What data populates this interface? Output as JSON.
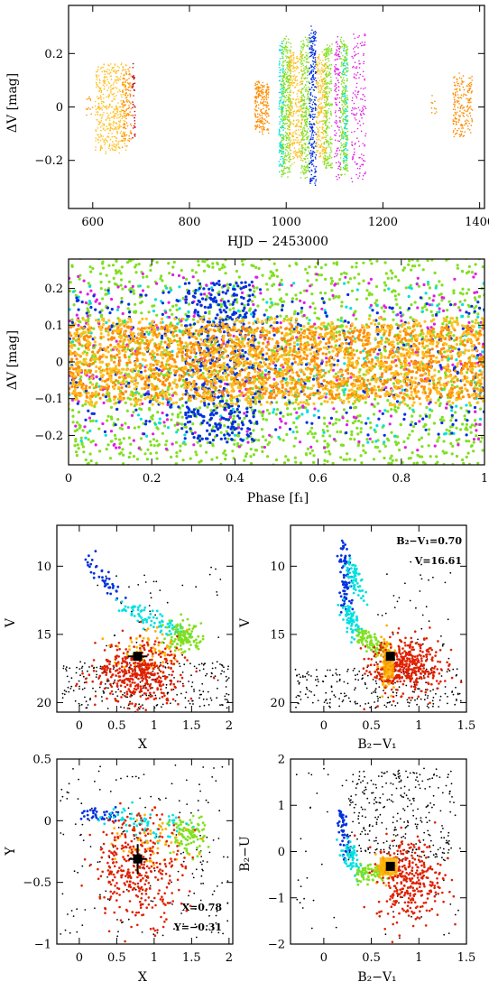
{
  "chart_data": [
    {
      "type": "scatter",
      "id": "light-curve",
      "xlabel": "HJD − 2453000",
      "ylabel": "ΔV [mag]",
      "xlim": [
        550,
        1410
      ],
      "ylim": [
        0.38,
        -0.38
      ],
      "xticks": [
        600,
        800,
        1000,
        1200,
        1400
      ],
      "yticks": [
        -0.2,
        0,
        0.2
      ],
      "ytick_labels": [
        "−0.2",
        "0",
        "0.2"
      ],
      "groups": [
        {
          "color": "#ff8c00",
          "x_range": [
            585,
            600
          ],
          "spread": 0.05,
          "count": 12
        },
        {
          "color": "#ffc020",
          "x_range": [
            605,
            670
          ],
          "spread": 0.18,
          "count": 450
        },
        {
          "color": "#ff8c00",
          "x_range": [
            660,
            680
          ],
          "spread": 0.15,
          "count": 120
        },
        {
          "color": "#c00000",
          "x_range": [
            682,
            688
          ],
          "spread": 0.18,
          "count": 40
        },
        {
          "color": "#ff8c00",
          "x_range": [
            935,
            965
          ],
          "spread": 0.1,
          "count": 220
        },
        {
          "color": "#00e0e0",
          "x_range": [
            985,
            995
          ],
          "spread": 0.26,
          "count": 140
        },
        {
          "color": "#80e020",
          "x_range": [
            990,
            1010
          ],
          "spread": 0.28,
          "count": 380
        },
        {
          "color": "#ffc020",
          "x_range": [
            1005,
            1035
          ],
          "spread": 0.22,
          "count": 320
        },
        {
          "color": "#80e020",
          "x_range": [
            1030,
            1048
          ],
          "spread": 0.28,
          "count": 300
        },
        {
          "color": "#0030e0",
          "x_range": [
            1048,
            1062
          ],
          "spread": 0.32,
          "count": 280
        },
        {
          "color": "#ffc020",
          "x_range": [
            1062,
            1085
          ],
          "spread": 0.22,
          "count": 280
        },
        {
          "color": "#80e020",
          "x_range": [
            1078,
            1095
          ],
          "spread": 0.26,
          "count": 240
        },
        {
          "color": "#e020e0",
          "x_range": [
            1100,
            1112
          ],
          "spread": 0.3,
          "count": 120
        },
        {
          "color": "#80e020",
          "x_range": [
            1112,
            1128
          ],
          "spread": 0.28,
          "count": 260
        },
        {
          "color": "#00e0e0",
          "x_range": [
            1118,
            1126
          ],
          "spread": 0.24,
          "count": 80
        },
        {
          "color": "#e020e0",
          "x_range": [
            1135,
            1165
          ],
          "spread": 0.3,
          "count": 160
        },
        {
          "color": "#ff8c00",
          "x_range": [
            1300,
            1312
          ],
          "spread": 0.04,
          "count": 10
        },
        {
          "color": "#ff8c00",
          "x_range": [
            1345,
            1385
          ],
          "spread": 0.12,
          "count": 200
        }
      ]
    },
    {
      "type": "scatter",
      "id": "phase-plot",
      "xlabel": "Phase [f₁]",
      "ylabel": "ΔV [mag]",
      "xlim": [
        0,
        1
      ],
      "ylim": [
        0.28,
        -0.28
      ],
      "xticks": [
        0,
        0.2,
        0.4,
        0.6,
        0.8,
        1
      ],
      "xtick_labels": [
        "0",
        "0.2",
        "0.4",
        "0.6",
        "0.8",
        "1"
      ],
      "yticks": [
        -0.2,
        -0.1,
        0,
        0.1,
        0.2
      ],
      "ytick_labels": [
        "−0.2",
        "−0.1",
        "0",
        "0.1",
        "0.2"
      ],
      "groups": [
        {
          "color": "#80e020",
          "spread": 0.3,
          "count": 1700
        },
        {
          "color": "#00e0e0",
          "spread": 0.22,
          "count": 250
        },
        {
          "color": "#e020e0",
          "spread": 0.24,
          "count": 320
        },
        {
          "color": "#0030e0",
          "spread": 0.22,
          "count": 420,
          "focus": [
            0.28,
            0.45
          ]
        },
        {
          "color": "#0030e0",
          "spread": 0.2,
          "count": 380
        },
        {
          "color": "#ff8c00",
          "spread": 0.1,
          "count": 1500
        },
        {
          "color": "#ffc020",
          "spread": 0.12,
          "count": 1200
        }
      ]
    },
    {
      "type": "scatter",
      "id": "cmd-v-x",
      "xlabel": "X",
      "ylabel": "V",
      "xlim": [
        -0.3,
        2.05
      ],
      "ylim": [
        7.0,
        20.7
      ],
      "xticks": [
        0,
        0.5,
        1,
        1.5,
        2
      ],
      "xtick_labels": [
        "0",
        "0.5",
        "1",
        "1.5",
        "2"
      ],
      "yticks": [
        10,
        15,
        20
      ],
      "ytick_labels": [
        "10",
        "15",
        "20"
      ],
      "target": {
        "x": 0.78,
        "y": 16.61
      }
    },
    {
      "type": "scatter",
      "id": "cmd-v-bv",
      "xlabel": "B₂−V₁",
      "ylabel": "V",
      "xlim": [
        -0.35,
        1.5
      ],
      "ylim": [
        7.0,
        20.7
      ],
      "xticks": [
        0,
        0.5,
        1,
        1.5
      ],
      "xtick_labels": [
        "0",
        "0.5",
        "1",
        "1.5"
      ],
      "yticks": [
        10,
        15,
        20
      ],
      "ytick_labels": [
        "10",
        "15",
        "20"
      ],
      "target": {
        "x": 0.7,
        "y": 16.61
      },
      "annotations": [
        "B₂−V₁=0.70",
        "V=16.61"
      ]
    },
    {
      "type": "scatter",
      "id": "xy-diagram",
      "xlabel": "X",
      "ylabel": "Y",
      "xlim": [
        -0.3,
        2.05
      ],
      "ylim": [
        0.5,
        -1.0
      ],
      "xticks": [
        0,
        0.5,
        1,
        1.5,
        2
      ],
      "xtick_labels": [
        "0",
        "0.5",
        "1",
        "1.5",
        "2"
      ],
      "yticks": [
        0.5,
        0,
        -0.5,
        -1
      ],
      "ytick_labels": [
        "0.5",
        "0",
        "−0.5",
        "−1"
      ],
      "target": {
        "x": 0.78,
        "y": -0.31
      },
      "annotations": [
        "X=0.78",
        "Y=−0.31"
      ]
    },
    {
      "type": "scatter",
      "id": "ccd-bu-bv",
      "xlabel": "B₂−V₁",
      "ylabel": "B₂−U",
      "xlim": [
        -0.35,
        1.5
      ],
      "ylim": [
        2.0,
        -2.0
      ],
      "xticks": [
        0,
        0.5,
        1,
        1.5
      ],
      "xtick_labels": [
        "0",
        "0.5",
        "1",
        "1.5"
      ],
      "yticks": [
        2,
        1,
        0,
        -1,
        -2
      ],
      "ytick_labels": [
        "2",
        "1",
        "0",
        "−1",
        "−2"
      ],
      "target": {
        "x": 0.7,
        "y": -0.32
      }
    }
  ]
}
